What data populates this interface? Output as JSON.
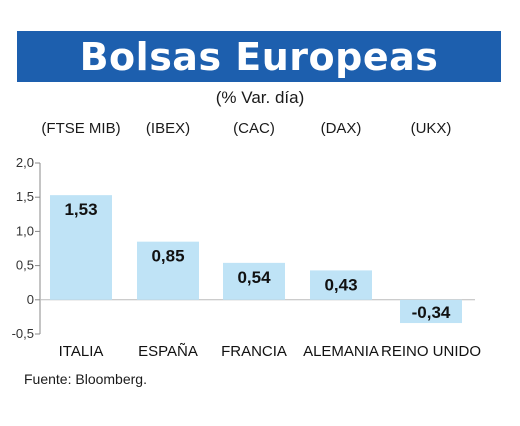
{
  "title": "Bolsas Europeas",
  "subtitle": "(% Var. día)",
  "source": "Fuente: Bloomberg.",
  "colors": {
    "title_band": "#1d5fae",
    "bar": "#bfe3f6"
  },
  "chart_data": {
    "type": "bar",
    "categories": [
      "ITALIA",
      "ESPAÑA",
      "FRANCIA",
      "ALEMANIA",
      "REINO UNIDO"
    ],
    "indices": [
      "(FTSE MIB)",
      "(IBEX)",
      "(CAC)",
      "(DAX)",
      "(UKX)"
    ],
    "values": [
      1.53,
      0.85,
      0.54,
      0.43,
      -0.34
    ],
    "value_labels": [
      "1,53",
      "0,85",
      "0,54",
      "0,43",
      "-0,34"
    ],
    "yticks": [
      2.0,
      1.5,
      1.0,
      0.5,
      0,
      -0.5
    ],
    "ytick_labels": [
      "2,0",
      "1,5",
      "1,0",
      "0,5",
      "0",
      "-0,5"
    ],
    "ylim": [
      -0.5,
      2.0
    ],
    "grid": false
  }
}
